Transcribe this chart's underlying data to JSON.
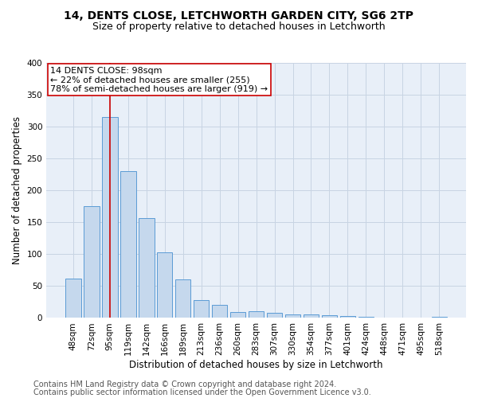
{
  "title1": "14, DENTS CLOSE, LETCHWORTH GARDEN CITY, SG6 2TP",
  "title2": "Size of property relative to detached houses in Letchworth",
  "xlabel": "Distribution of detached houses by size in Letchworth",
  "ylabel": "Number of detached properties",
  "categories": [
    "48sqm",
    "72sqm",
    "95sqm",
    "119sqm",
    "142sqm",
    "166sqm",
    "189sqm",
    "213sqm",
    "236sqm",
    "260sqm",
    "283sqm",
    "307sqm",
    "330sqm",
    "354sqm",
    "377sqm",
    "401sqm",
    "424sqm",
    "448sqm",
    "471sqm",
    "495sqm",
    "518sqm"
  ],
  "values": [
    62,
    175,
    315,
    230,
    157,
    103,
    61,
    28,
    21,
    9,
    10,
    8,
    6,
    5,
    4,
    3,
    2,
    1,
    1,
    1,
    2
  ],
  "bar_color": "#c5d8ed",
  "bar_edge_color": "#5b9bd5",
  "annotation_box_text1": "14 DENTS CLOSE: 98sqm",
  "annotation_box_text2": "← 22% of detached houses are smaller (255)",
  "annotation_box_text3": "78% of semi-detached houses are larger (919) →",
  "annotation_line_color": "#cc0000",
  "annotation_box_color": "#ffffff",
  "annotation_box_edge_color": "#cc0000",
  "ylim": [
    0,
    400
  ],
  "yticks": [
    0,
    50,
    100,
    150,
    200,
    250,
    300,
    350,
    400
  ],
  "grid_color": "#c8d4e3",
  "background_color": "#e8eff8",
  "footer1": "Contains HM Land Registry data © Crown copyright and database right 2024.",
  "footer2": "Contains public sector information licensed under the Open Government Licence v3.0.",
  "title_fontsize": 10,
  "subtitle_fontsize": 9,
  "axis_label_fontsize": 8.5,
  "tick_fontsize": 7.5,
  "footer_fontsize": 7,
  "annotation_fontsize": 8,
  "line_x_index": 2.0
}
